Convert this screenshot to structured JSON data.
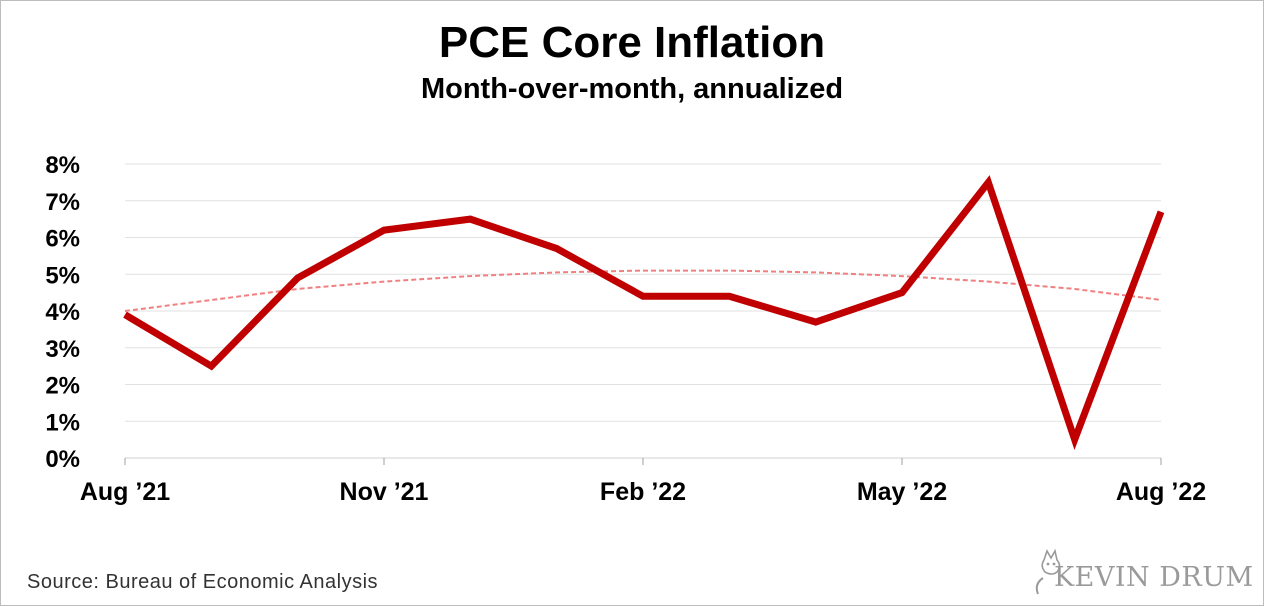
{
  "chart_data": {
    "type": "line",
    "title": "PCE Core Inflation",
    "subtitle": "Month-over-month, annualized",
    "xlabel": "",
    "ylabel": "",
    "categories": [
      "Aug '21",
      "Sep '21",
      "Oct '21",
      "Nov '21",
      "Dec '21",
      "Jan '22",
      "Feb '22",
      "Mar '22",
      "Apr '22",
      "May '22",
      "Jun '22",
      "Jul '22",
      "Aug '22"
    ],
    "x_tick_labels": [
      "Aug ’21",
      "Nov ’21",
      "Feb ’22",
      "May ’22",
      "Aug ’22"
    ],
    "y_tick_labels": [
      "0%",
      "1%",
      "2%",
      "3%",
      "4%",
      "5%",
      "6%",
      "7%",
      "8%"
    ],
    "ylim": [
      0,
      8
    ],
    "grid": true,
    "series": [
      {
        "style": "solid",
        "color": "#c00000",
        "values": [
          3.9,
          2.5,
          4.9,
          6.2,
          6.5,
          5.7,
          4.4,
          4.4,
          3.7,
          4.5,
          7.5,
          0.5,
          6.7
        ]
      },
      {
        "style": "dashed-trend",
        "color": "#f08080",
        "values": [
          4.0,
          4.3,
          4.6,
          4.8,
          4.95,
          5.05,
          5.1,
          5.1,
          5.05,
          4.95,
          4.8,
          4.6,
          4.3
        ]
      }
    ]
  },
  "source": "Source: Bureau of Economic Analysis",
  "logo_text": "KEVIN DRUM"
}
